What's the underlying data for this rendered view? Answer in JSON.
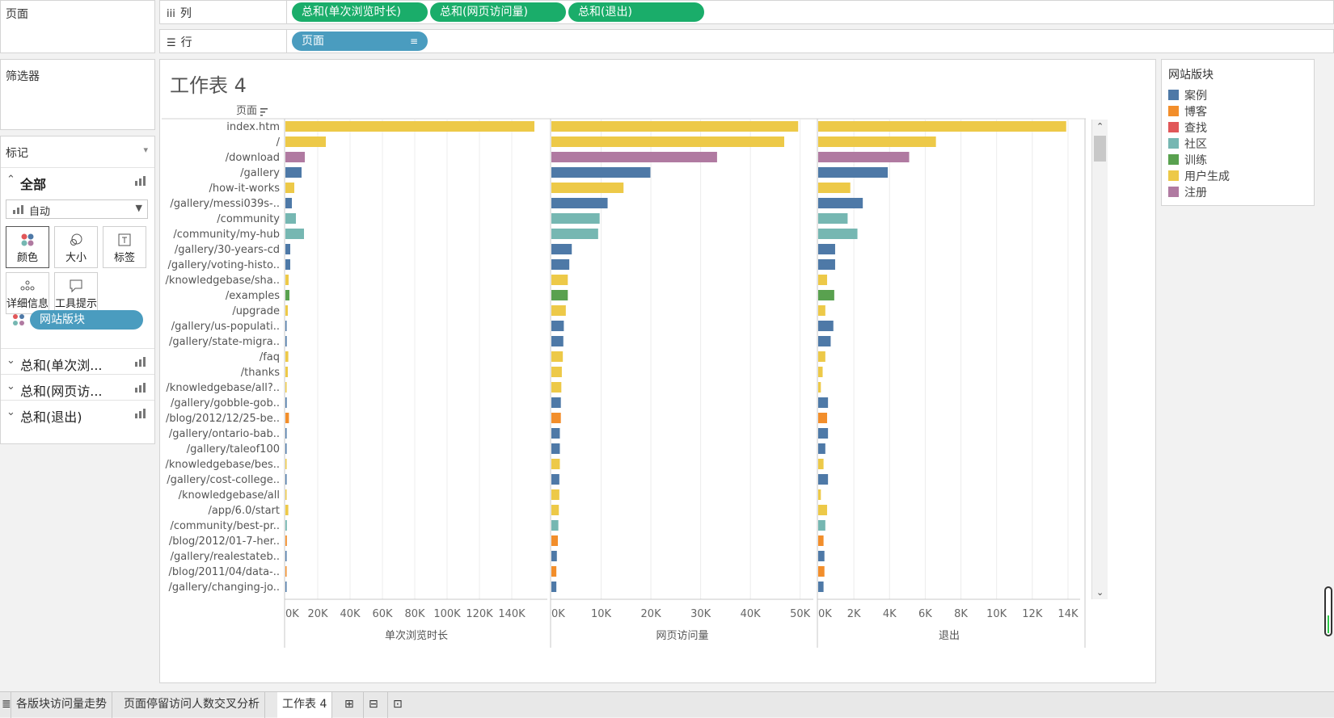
{
  "panes": {
    "pages": "页面",
    "filters": "筛选器",
    "marks": "标记",
    "marks_all": "全部",
    "mark_type": "自动",
    "cards": [
      "颜色",
      "大小",
      "标签",
      "详细信息",
      "工具提示"
    ],
    "color_field": "网站版块",
    "measure_rows": [
      "总和(单次浏...",
      "总和(网页访...",
      "总和(退出)"
    ]
  },
  "shelves": {
    "columns_label": "列",
    "rows_label": "行",
    "column_pills": [
      "总和(单次浏览时长)",
      "总和(网页访问量)",
      "总和(退出)"
    ],
    "row_pill": "页面"
  },
  "colors": {
    "pill_green": "#1aad6a",
    "pill_blue": "#4a9cbf",
    "案例": "#4e79a7",
    "博客": "#f28e2b",
    "查找": "#e15759",
    "社区": "#76b7b2",
    "训练": "#59a14f",
    "用户生成": "#edc948",
    "注册": "#b07aa1"
  },
  "sheet": {
    "title": "工作表 4",
    "row_header": "页面"
  },
  "legend": {
    "title": "网站版块",
    "items": [
      "案例",
      "博客",
      "查找",
      "社区",
      "训练",
      "用户生成",
      "注册"
    ]
  },
  "chart_data": {
    "type": "bar",
    "orientation": "horizontal",
    "categories": [
      "index.htm",
      "/",
      "/download",
      "/gallery",
      "/how-it-works",
      "/gallery/messi039s-..",
      "/community",
      "/community/my-hub",
      "/gallery/30-years-cd",
      "/gallery/voting-histo..",
      "/knowledgebase/sha..",
      "/examples",
      "/upgrade",
      "/gallery/us-populati..",
      "/gallery/state-migra..",
      "/faq",
      "/thanks",
      "/knowledgebase/all?..",
      "/gallery/gobble-gob..",
      "/blog/2012/12/25-be..",
      "/gallery/ontario-bab..",
      "/gallery/taleof100",
      "/knowledgebase/bes..",
      "/gallery/cost-college..",
      "/knowledgebase/all",
      "/app/6.0/start",
      "/community/best-pr..",
      "/blog/2012/01-7-her..",
      "/gallery/realestateb..",
      "/blog/2011/04/data-..",
      "/gallery/changing-jo.."
    ],
    "color_groups": [
      "用户生成",
      "用户生成",
      "注册",
      "案例",
      "用户生成",
      "案例",
      "社区",
      "社区",
      "案例",
      "案例",
      "用户生成",
      "训练",
      "用户生成",
      "案例",
      "案例",
      "用户生成",
      "用户生成",
      "用户生成",
      "案例",
      "博客",
      "案例",
      "案例",
      "用户生成",
      "案例",
      "用户生成",
      "用户生成",
      "社区",
      "博客",
      "案例",
      "博客",
      "案例"
    ],
    "series": [
      {
        "name": "单次浏览时长",
        "values": [
          154000,
          25000,
          12000,
          10000,
          5500,
          4000,
          6500,
          11500,
          3000,
          3000,
          2000,
          2500,
          1500,
          600,
          800,
          1800,
          1500,
          700,
          800,
          2200,
          700,
          600,
          500,
          700,
          400,
          1800,
          900,
          900,
          700,
          600,
          500
        ]
      },
      {
        "name": "网页访问量",
        "values": [
          49600,
          46800,
          33300,
          19900,
          14500,
          11300,
          9700,
          9400,
          4100,
          3600,
          3300,
          3300,
          2900,
          2500,
          2400,
          2300,
          2100,
          2000,
          1900,
          1900,
          1700,
          1700,
          1700,
          1600,
          1600,
          1500,
          1400,
          1300,
          1100,
          1000,
          1000
        ]
      },
      {
        "name": "退出",
        "values": [
          13900,
          6600,
          5100,
          3900,
          1800,
          2500,
          1650,
          2200,
          950,
          950,
          500,
          900,
          400,
          850,
          700,
          400,
          250,
          150,
          550,
          500,
          550,
          400,
          300,
          550,
          150,
          500,
          400,
          300,
          350,
          350,
          300
        ]
      }
    ],
    "axes": [
      {
        "title": "单次浏览时长",
        "ticks": [
          "0K",
          "20K",
          "40K",
          "60K",
          "80K",
          "100K",
          "120K",
          "140K"
        ],
        "range": [
          0,
          160000
        ]
      },
      {
        "title": "网页访问量",
        "ticks": [
          "0K",
          "10K",
          "20K",
          "30K",
          "40K",
          "50K"
        ],
        "range": [
          0,
          52000
        ]
      },
      {
        "title": "退出",
        "ticks": [
          "0K",
          "2K",
          "4K",
          "6K",
          "8K",
          "10K",
          "12K",
          "14K"
        ],
        "range": [
          0,
          14500
        ]
      }
    ],
    "grid": true
  },
  "tabs": [
    "各版块访问量走势",
    "页面停留访问人数交叉分析",
    "工作表 4"
  ]
}
